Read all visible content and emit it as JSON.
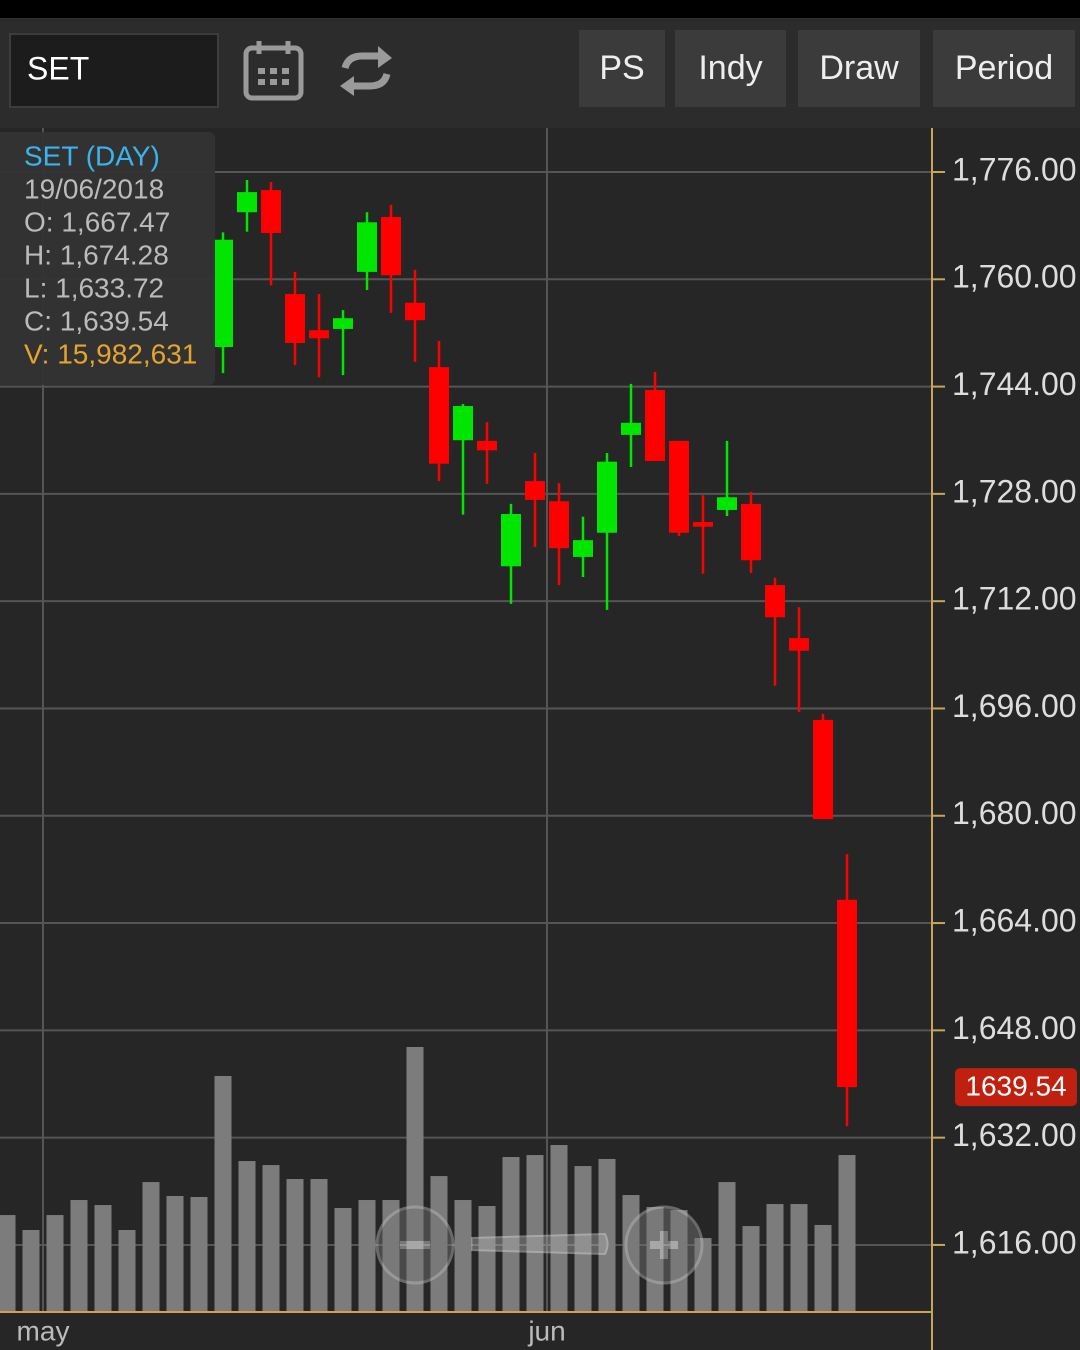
{
  "toolbar": {
    "symbol": "SET",
    "buttons": [
      "PS",
      "Indy",
      "Draw",
      "Period"
    ]
  },
  "tooltip": {
    "title": "SET (DAY)",
    "date": "19/06/2018",
    "lines": [
      "O: 1,667.47",
      "H: 1,674.28",
      "L: 1,633.72",
      "C: 1,639.54",
      "V: 15,982,631"
    ]
  },
  "chart_data": {
    "type": "candlestick",
    "categories": [
      null,
      "may",
      null,
      null,
      null,
      null,
      null,
      null,
      null,
      null,
      null,
      null,
      null,
      null,
      null,
      null,
      null,
      null,
      null,
      null,
      null,
      null,
      "jun",
      null,
      null,
      null,
      null,
      null,
      null,
      null,
      null,
      null,
      null,
      null,
      null,
      null
    ],
    "open": [
      null,
      null,
      null,
      null,
      null,
      null,
      null,
      null,
      null,
      1749.9,
      1770.0,
      1773.3,
      1757.8,
      1752.4,
      1752.6,
      1761.1,
      1769.3,
      1756.5,
      1746.9,
      1736.0,
      1735.9,
      1717.2,
      1729.9,
      1726.9,
      1718.6,
      1722.2,
      1736.8,
      1743.5,
      1735.9,
      1723.8,
      1725.6,
      1726.5,
      1714.4,
      1706.5,
      1694.3,
      1667.47
    ],
    "high": [
      null,
      null,
      null,
      null,
      null,
      null,
      null,
      null,
      null,
      1767.0,
      1774.8,
      1774.5,
      1761.1,
      1757.8,
      1755.4,
      1770.0,
      1771.1,
      1761.4,
      1750.8,
      1741.4,
      1738.7,
      1726.5,
      1734.1,
      1729.6,
      1724.6,
      1734.1,
      1744.4,
      1746.2,
      1735.9,
      1727.8,
      1735.9,
      1728.3,
      1715.5,
      1711.1,
      1695.2,
      1674.28
    ],
    "low": [
      null,
      null,
      null,
      null,
      null,
      null,
      null,
      null,
      null,
      1746.0,
      1767.1,
      1759.1,
      1747.2,
      1745.4,
      1745.7,
      1758.4,
      1755.0,
      1747.7,
      1729.9,
      1724.9,
      1729.5,
      1711.6,
      1720.1,
      1714.4,
      1715.6,
      1710.7,
      1732.0,
      1732.9,
      1721.7,
      1716.1,
      1724.7,
      1716.2,
      1699.4,
      1695.5,
      1679.5,
      1633.72
    ],
    "close": [
      null,
      null,
      null,
      null,
      null,
      null,
      null,
      null,
      null,
      1765.9,
      1773.0,
      1766.9,
      1750.5,
      1751.2,
      1754.2,
      1768.5,
      1760.6,
      1753.9,
      1732.5,
      1741.1,
      1734.5,
      1725.0,
      1727.1,
      1719.9,
      1721.1,
      1732.8,
      1738.6,
      1732.9,
      1722.2,
      1723.1,
      1727.5,
      1718.1,
      1709.6,
      1704.6,
      1679.5,
      1639.54
    ],
    "volume": [
      9870000,
      8350000,
      9870000,
      11400000,
      10890000,
      8350000,
      13230000,
      11810000,
      11710000,
      24030000,
      15370000,
      14960000,
      13540000,
      13540000,
      10590000,
      11400000,
      11400000,
      26980000,
      13840000,
      11400000,
      10790000,
      15780000,
      15980000,
      17000000,
      14860000,
      15580000,
      11910000,
      10690000,
      10380000,
      7530000,
      13230000,
      8750000,
      10990000,
      10990000,
      8860000,
      15982631
    ],
    "up_color": "#00e600",
    "down_color": "#ff0000",
    "volume_color": "#7c7c7c",
    "ylim": [
      1606.0,
      1782.56
    ],
    "yticks": [
      {
        "value": 1776,
        "label": "1,776.00"
      },
      {
        "value": 1760,
        "label": "1,760.00"
      },
      {
        "value": 1744,
        "label": "1,744.00"
      },
      {
        "value": 1728,
        "label": "1,728.00"
      },
      {
        "value": 1712,
        "label": "1,712.00"
      },
      {
        "value": 1696,
        "label": "1,696.00"
      },
      {
        "value": 1680,
        "label": "1,680.00"
      },
      {
        "value": 1664,
        "label": "1,664.00"
      },
      {
        "value": 1648,
        "label": "1,648.00"
      },
      {
        "value": 1632,
        "label": "1,632.00"
      },
      {
        "value": 1616,
        "label": "1,616.00"
      }
    ],
    "grid": true
  }
}
